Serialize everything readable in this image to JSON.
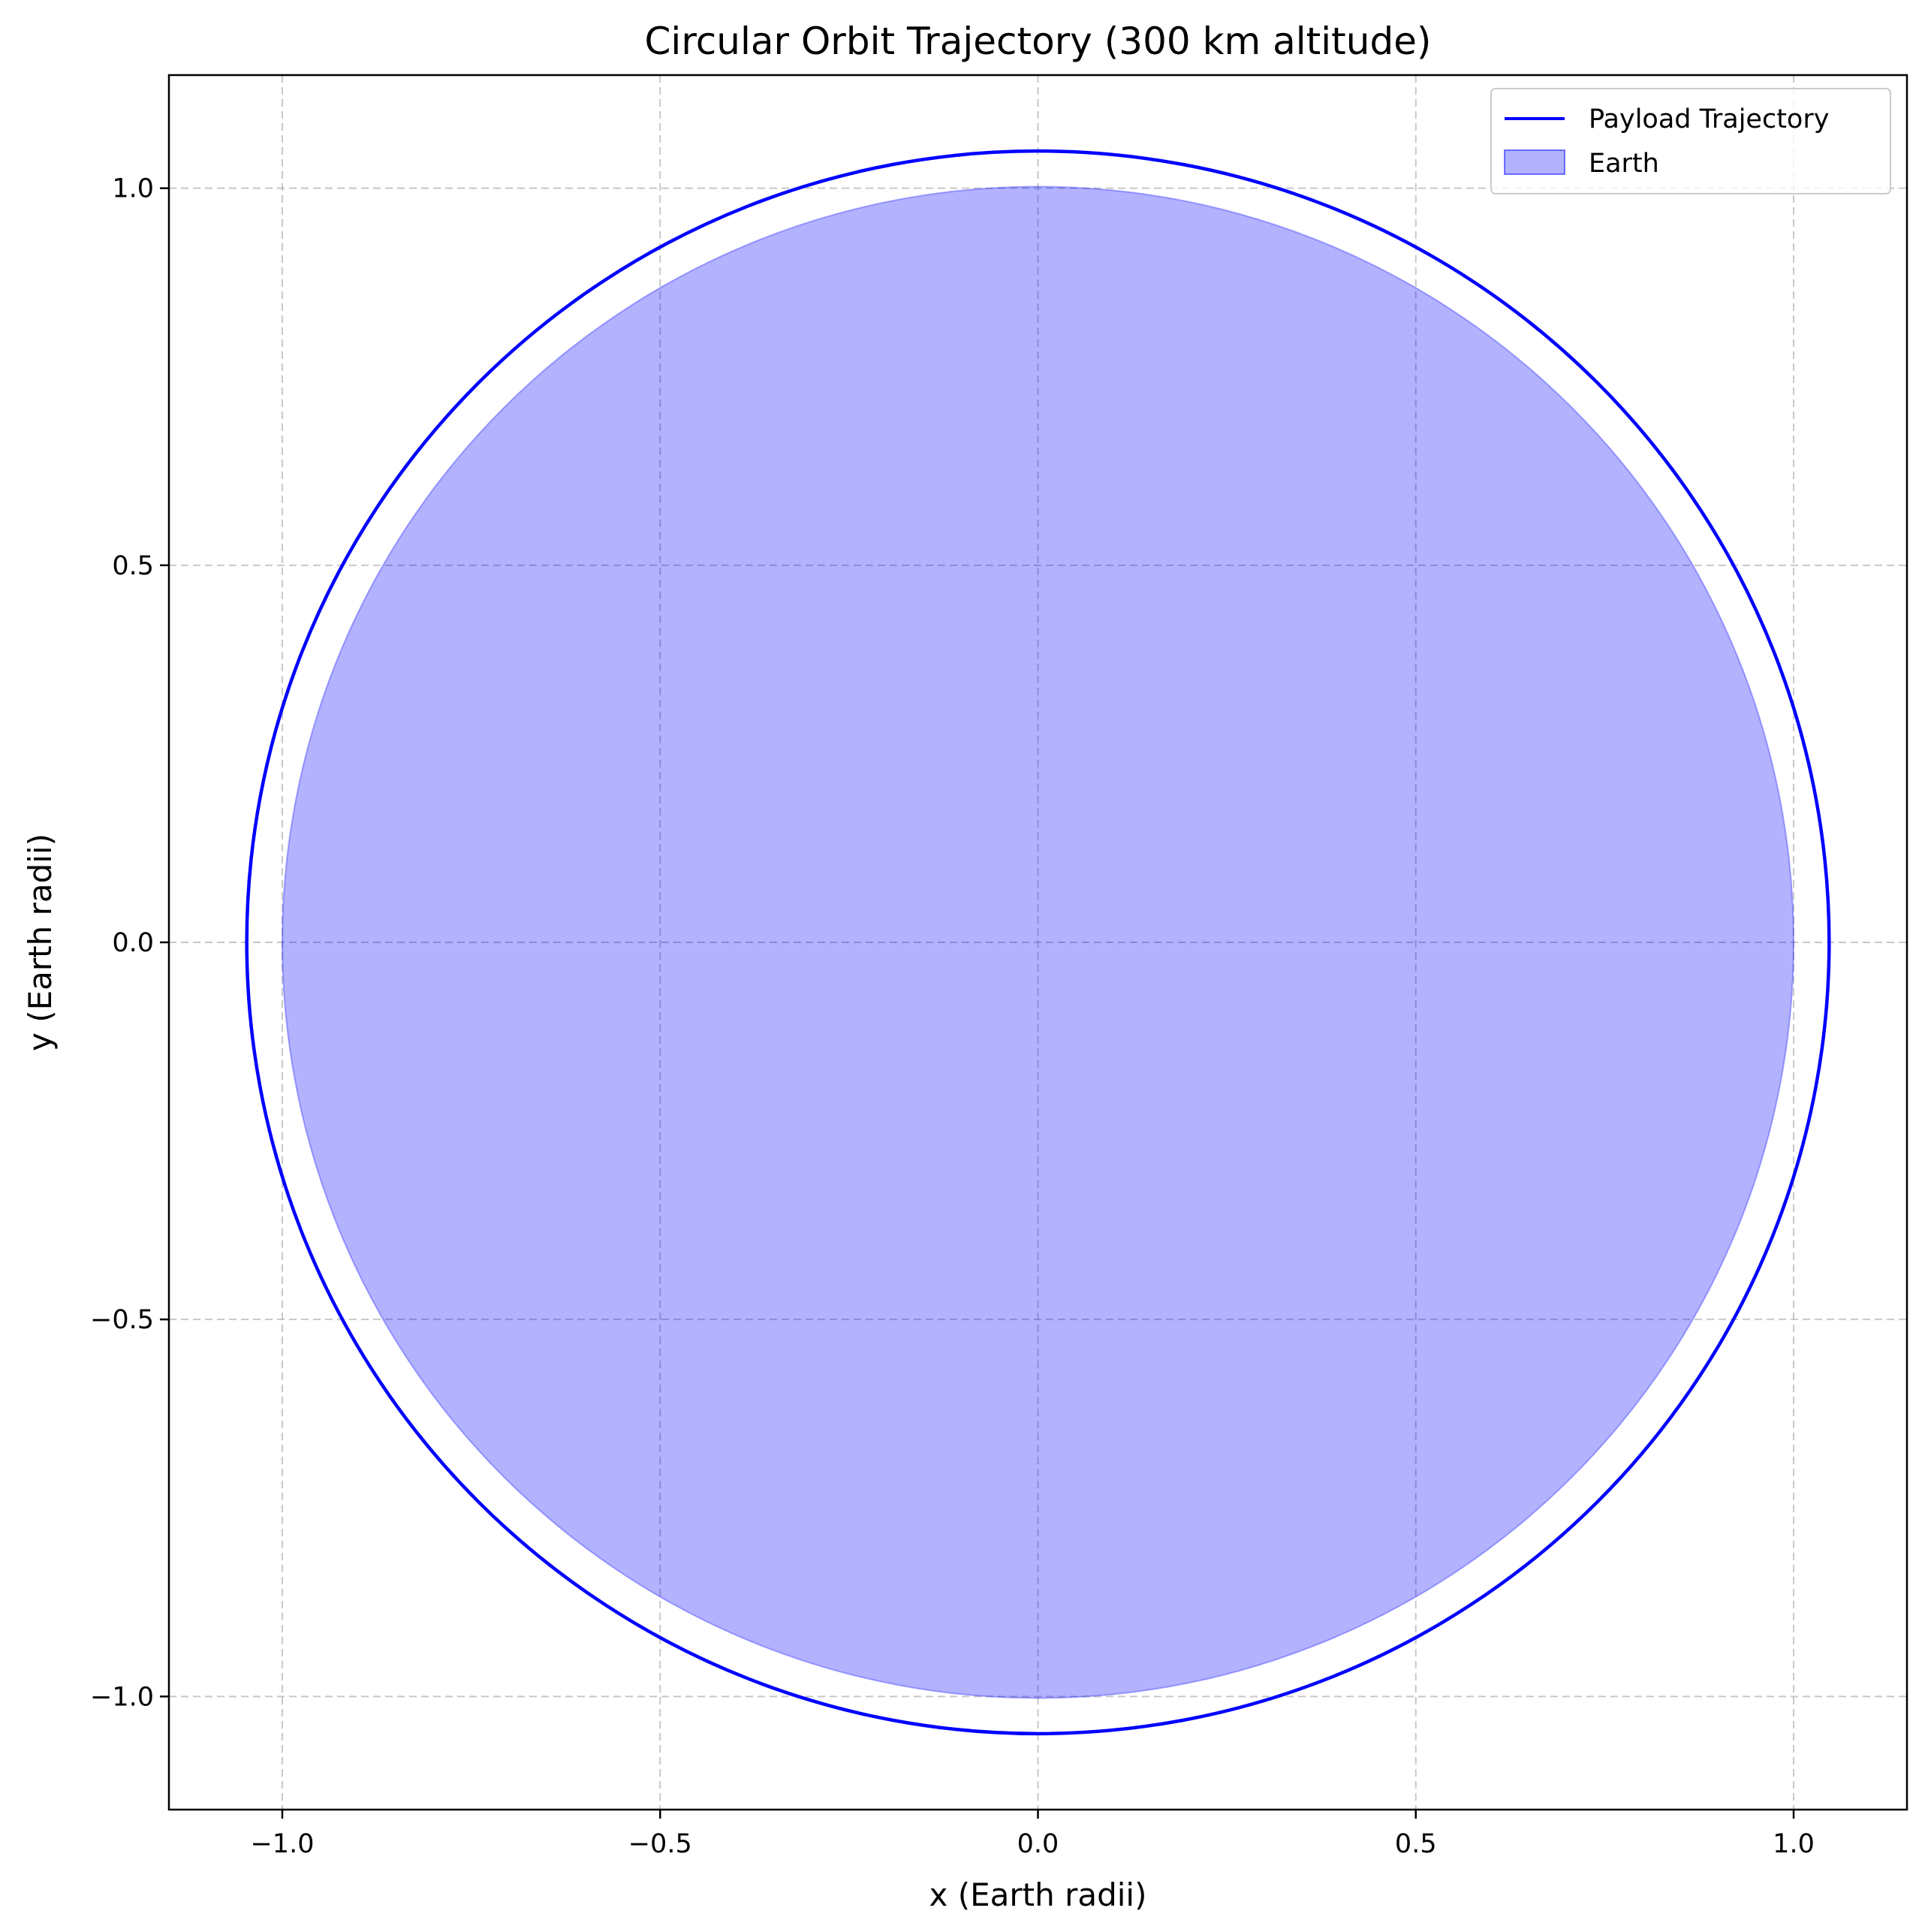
{
  "chart_data": {
    "type": "line",
    "title": "Circular Orbit Trajectory (300 km altitude)",
    "xlabel": "x (Earth radii)",
    "ylabel": "y (Earth radii)",
    "xlim": [
      -1.15,
      1.15
    ],
    "ylim": [
      -1.15,
      1.15
    ],
    "xticks": [
      -1.0,
      -0.5,
      0.0,
      0.5,
      1.0
    ],
    "yticks": [
      -1.0,
      -0.5,
      0.0,
      0.5,
      1.0
    ],
    "xtick_labels": [
      "−1.0",
      "−0.5",
      "0.0",
      "0.5",
      "1.0"
    ],
    "ytick_labels": [
      "−1.0",
      "−0.5",
      "0.0",
      "0.5",
      "1.0"
    ],
    "grid": true,
    "legend_position": "top-right",
    "series": [
      {
        "name": "Payload Trajectory",
        "kind": "line",
        "shape": "circle",
        "center": [
          0,
          0
        ],
        "radius": 1.047,
        "color": "#0000ff"
      },
      {
        "name": "Earth",
        "kind": "filled-area",
        "shape": "circle",
        "center": [
          0,
          0
        ],
        "radius": 1.0,
        "color": "#0000ff",
        "alpha": 0.3
      }
    ]
  }
}
